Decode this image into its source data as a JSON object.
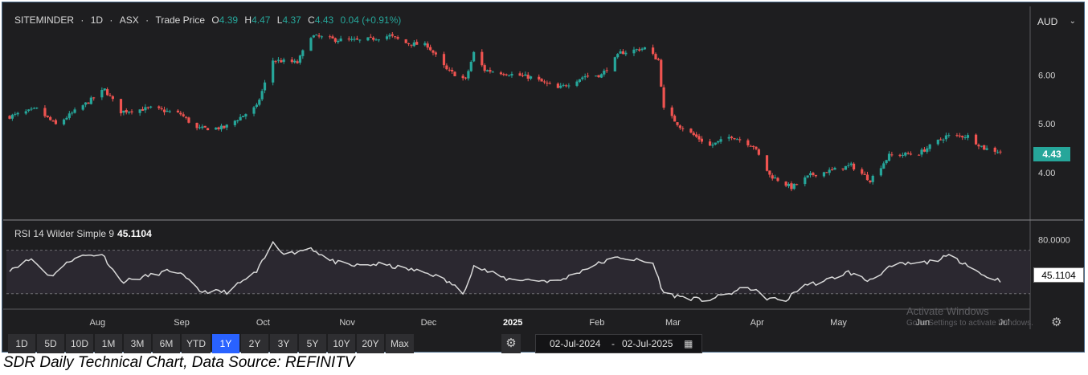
{
  "header": {
    "symbol": "SITEMINDER",
    "interval": "1D",
    "exchange": "ASX",
    "price_type": "Trade Price",
    "o_label": "O",
    "o_value": "4.39",
    "h_label": "H",
    "h_value": "4.47",
    "l_label": "L",
    "l_value": "4.37",
    "c_label": "C",
    "c_value": "4.43",
    "change": "0.04 (+0.91%)"
  },
  "currency": "AUD",
  "last_price_tag": "4.43",
  "rsi": {
    "label": "RSI 14 Wilder Simple 9",
    "value": "45.1104",
    "tag": "45.1104",
    "upper_level_label": "80.0000"
  },
  "timeframes": [
    "1D",
    "5D",
    "10D",
    "1M",
    "3M",
    "6M",
    "YTD",
    "1Y",
    "2Y",
    "3Y",
    "5Y",
    "10Y",
    "20Y",
    "Max"
  ],
  "active_timeframe": "1Y",
  "date_range": {
    "from": "02-Jul-2024",
    "separator": "-",
    "to": "02-Jul-2025"
  },
  "watermark": {
    "line1": "Activate Windows",
    "line2": "Go to Settings to activate Windows."
  },
  "caption": "SDR Daily Technical Chart, Data Source: REFINITV",
  "colors": {
    "up": "#26a69a",
    "down": "#ef5350",
    "background": "#1e1e20",
    "active_button": "#2962ff",
    "rsi_line": "#d9d9d9"
  },
  "chart_data": {
    "type": "candlestick",
    "price_axis": {
      "ticks": [
        4.0,
        5.0,
        6.0
      ],
      "tick_labels": [
        "4.00",
        "5.00",
        "6.00"
      ],
      "ylim": [
        3.1,
        7.4
      ]
    },
    "x_tick_labels": [
      "Aug",
      "Sep",
      "Oct",
      "Nov",
      "Dec",
      "2025",
      "Feb",
      "Mar",
      "Apr",
      "May",
      "Jun",
      "Jul"
    ],
    "close_path": [
      [
        "2024-07-02",
        5.15
      ],
      [
        "2024-07-12",
        5.3
      ],
      [
        "2024-07-19",
        4.98
      ],
      [
        "2024-07-31",
        5.45
      ],
      [
        "2024-08-06",
        5.7
      ],
      [
        "2024-08-12",
        5.25
      ],
      [
        "2024-08-23",
        5.32
      ],
      [
        "2024-09-03",
        5.2
      ],
      [
        "2024-09-09",
        4.9
      ],
      [
        "2024-09-19",
        4.92
      ],
      [
        "2024-10-01",
        5.35
      ],
      [
        "2024-10-07",
        6.3
      ],
      [
        "2024-10-16",
        6.25
      ],
      [
        "2024-10-21",
        6.8
      ],
      [
        "2024-10-30",
        6.72
      ],
      [
        "2024-11-08",
        6.7
      ],
      [
        "2024-11-19",
        6.8
      ],
      [
        "2024-11-25",
        6.65
      ],
      [
        "2024-12-03",
        6.6
      ],
      [
        "2024-12-10",
        6.1
      ],
      [
        "2024-12-17",
        5.9
      ],
      [
        "2024-12-20",
        6.45
      ],
      [
        "2024-12-24",
        6.1
      ],
      [
        "2025-01-10",
        5.95
      ],
      [
        "2025-01-20",
        5.72
      ],
      [
        "2025-01-30",
        5.98
      ],
      [
        "2025-02-05",
        6.0
      ],
      [
        "2025-02-12",
        6.45
      ],
      [
        "2025-02-21",
        6.55
      ],
      [
        "2025-02-26",
        6.3
      ],
      [
        "2025-02-28",
        5.3
      ],
      [
        "2025-03-06",
        4.95
      ],
      [
        "2025-03-17",
        4.55
      ],
      [
        "2025-03-25",
        4.75
      ],
      [
        "2025-04-02",
        4.55
      ],
      [
        "2025-04-08",
        3.95
      ],
      [
        "2025-04-16",
        3.7
      ],
      [
        "2025-04-23",
        3.95
      ],
      [
        "2025-05-01",
        4.05
      ],
      [
        "2025-05-08",
        4.15
      ],
      [
        "2025-05-15",
        3.85
      ],
      [
        "2025-05-22",
        4.35
      ],
      [
        "2025-06-02",
        4.4
      ],
      [
        "2025-06-12",
        4.75
      ],
      [
        "2025-06-20",
        4.75
      ],
      [
        "2025-06-26",
        4.5
      ],
      [
        "2025-07-02",
        4.43
      ]
    ],
    "rsi_axis": {
      "ylim": [
        15,
        100
      ],
      "levels": [
        80,
        30
      ],
      "level_labels": [
        "80.0000"
      ]
    },
    "rsi_path": [
      [
        "2024-07-02",
        58
      ],
      [
        "2024-07-10",
        70
      ],
      [
        "2024-07-17",
        50
      ],
      [
        "2024-07-26",
        72
      ],
      [
        "2024-08-05",
        76
      ],
      [
        "2024-08-12",
        44
      ],
      [
        "2024-08-20",
        49
      ],
      [
        "2024-09-01",
        58
      ],
      [
        "2024-09-10",
        33
      ],
      [
        "2024-09-20",
        32
      ],
      [
        "2024-10-01",
        55
      ],
      [
        "2024-10-07",
        88
      ],
      [
        "2024-10-12",
        75
      ],
      [
        "2024-10-21",
        83
      ],
      [
        "2024-10-28",
        68
      ],
      [
        "2024-11-05",
        62
      ],
      [
        "2024-11-15",
        64
      ],
      [
        "2024-11-28",
        57
      ],
      [
        "2024-12-05",
        52
      ],
      [
        "2024-12-12",
        41
      ],
      [
        "2024-12-16",
        30
      ],
      [
        "2024-12-20",
        62
      ],
      [
        "2025-01-01",
        47
      ],
      [
        "2025-01-10",
        46
      ],
      [
        "2025-01-20",
        44
      ],
      [
        "2025-01-31",
        60
      ],
      [
        "2025-02-06",
        67
      ],
      [
        "2025-02-12",
        72
      ],
      [
        "2025-02-24",
        65
      ],
      [
        "2025-02-28",
        30
      ],
      [
        "2025-03-15",
        22
      ],
      [
        "2025-03-25",
        31
      ],
      [
        "2025-03-31",
        38
      ],
      [
        "2025-04-07",
        25
      ],
      [
        "2025-04-14",
        22
      ],
      [
        "2025-04-20",
        40
      ],
      [
        "2025-04-27",
        43
      ],
      [
        "2025-05-07",
        55
      ],
      [
        "2025-05-14",
        45
      ],
      [
        "2025-05-24",
        63
      ],
      [
        "2025-06-05",
        66
      ],
      [
        "2025-06-13",
        73
      ],
      [
        "2025-06-20",
        64
      ],
      [
        "2025-06-25",
        52
      ],
      [
        "2025-07-02",
        45.11
      ]
    ],
    "date_range": [
      "2024-07-02",
      "2025-07-02"
    ]
  }
}
